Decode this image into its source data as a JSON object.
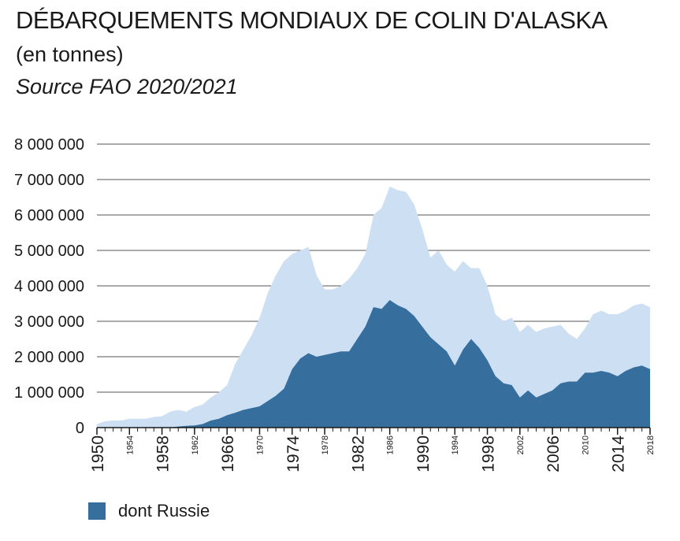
{
  "chart_data": {
    "type": "area",
    "title": "DÉBARQUEMENTS MONDIAUX DE COLIN D'ALASKA",
    "subtitle": "(en tonnes)",
    "source": "Source FAO 2020/2021",
    "ylim": [
      0,
      8000000
    ],
    "xlim": [
      1950,
      2018
    ],
    "grid": true,
    "y_ticks": [
      {
        "value": 8000000,
        "label": "8 000 000"
      },
      {
        "value": 7000000,
        "label": "7 000 000"
      },
      {
        "value": 6000000,
        "label": "6 000 000"
      },
      {
        "value": 5000000,
        "label": "5 000 000"
      },
      {
        "value": 4000000,
        "label": "4 000 000"
      },
      {
        "value": 3000000,
        "label": "3 000 000"
      },
      {
        "value": 2000000,
        "label": "2 000 000"
      },
      {
        "value": 1000000,
        "label": "1 000 000"
      },
      {
        "value": 0,
        "label": "0"
      }
    ],
    "x_ticks": [
      {
        "value": 1950,
        "label": "1950",
        "size": "large"
      },
      {
        "value": 1954,
        "label": "1954",
        "size": "small"
      },
      {
        "value": 1958,
        "label": "1958",
        "size": "large"
      },
      {
        "value": 1962,
        "label": "1962",
        "size": "small"
      },
      {
        "value": 1966,
        "label": "1966",
        "size": "large"
      },
      {
        "value": 1970,
        "label": "1970",
        "size": "small"
      },
      {
        "value": 1974,
        "label": "1974",
        "size": "large"
      },
      {
        "value": 1978,
        "label": "1978",
        "size": "small"
      },
      {
        "value": 1982,
        "label": "1982",
        "size": "large"
      },
      {
        "value": 1986,
        "label": "1986",
        "size": "small"
      },
      {
        "value": 1990,
        "label": "1990",
        "size": "large"
      },
      {
        "value": 1994,
        "label": "1994",
        "size": "small"
      },
      {
        "value": 1998,
        "label": "1998",
        "size": "large"
      },
      {
        "value": 2002,
        "label": "2002",
        "size": "small"
      },
      {
        "value": 2006,
        "label": "2006",
        "size": "large"
      },
      {
        "value": 2010,
        "label": "2010",
        "size": "small"
      },
      {
        "value": 2014,
        "label": "2014",
        "size": "large"
      },
      {
        "value": 2018,
        "label": "2018",
        "size": "small"
      }
    ],
    "x": [
      1950,
      1951,
      1952,
      1953,
      1954,
      1955,
      1956,
      1957,
      1958,
      1959,
      1960,
      1961,
      1962,
      1963,
      1964,
      1965,
      1966,
      1967,
      1968,
      1969,
      1970,
      1971,
      1972,
      1973,
      1974,
      1975,
      1976,
      1977,
      1978,
      1979,
      1980,
      1981,
      1982,
      1983,
      1984,
      1985,
      1986,
      1987,
      1988,
      1989,
      1990,
      1991,
      1992,
      1993,
      1994,
      1995,
      1996,
      1997,
      1998,
      1999,
      2000,
      2001,
      2002,
      2003,
      2004,
      2005,
      2006,
      2007,
      2008,
      2009,
      2010,
      2011,
      2012,
      2013,
      2014,
      2015,
      2016,
      2017,
      2018
    ],
    "series": [
      {
        "color": "#cddff2",
        "values": [
          100000,
          180000,
          200000,
          200000,
          250000,
          250000,
          250000,
          300000,
          320000,
          450000,
          500000,
          450000,
          580000,
          650000,
          850000,
          1000000,
          1200000,
          1800000,
          2200000,
          2600000,
          3100000,
          3800000,
          4300000,
          4700000,
          4900000,
          5000000,
          5100000,
          4300000,
          3900000,
          3900000,
          4000000,
          4200000,
          4500000,
          4900000,
          6000000,
          6200000,
          6800000,
          6700000,
          6650000,
          6300000,
          5600000,
          4800000,
          5000000,
          4600000,
          4400000,
          4700000,
          4500000,
          4500000,
          4000000,
          3200000,
          3000000,
          3100000,
          2700000,
          2900000,
          2700000,
          2800000,
          2850000,
          2900000,
          2650000,
          2500000,
          2800000,
          3200000,
          3300000,
          3200000,
          3200000,
          3300000,
          3450000,
          3500000,
          3400000
        ]
      },
      {
        "name": "dont Russie",
        "color": "#366e9e",
        "values": [
          0,
          0,
          0,
          0,
          0,
          0,
          0,
          0,
          0,
          0,
          30000,
          50000,
          60000,
          100000,
          200000,
          250000,
          350000,
          420000,
          500000,
          550000,
          600000,
          750000,
          900000,
          1100000,
          1650000,
          1950000,
          2100000,
          2000000,
          2050000,
          2100000,
          2150000,
          2150000,
          2500000,
          2850000,
          3400000,
          3350000,
          3600000,
          3450000,
          3350000,
          3150000,
          2850000,
          2550000,
          2350000,
          2150000,
          1750000,
          2200000,
          2500000,
          2250000,
          1900000,
          1450000,
          1250000,
          1200000,
          850000,
          1050000,
          850000,
          950000,
          1050000,
          1250000,
          1300000,
          1300000,
          1550000,
          1550000,
          1600000,
          1550000,
          1450000,
          1600000,
          1700000,
          1750000,
          1650000
        ]
      }
    ]
  },
  "legend": {
    "label": "dont Russie",
    "color": "#366e9e"
  }
}
